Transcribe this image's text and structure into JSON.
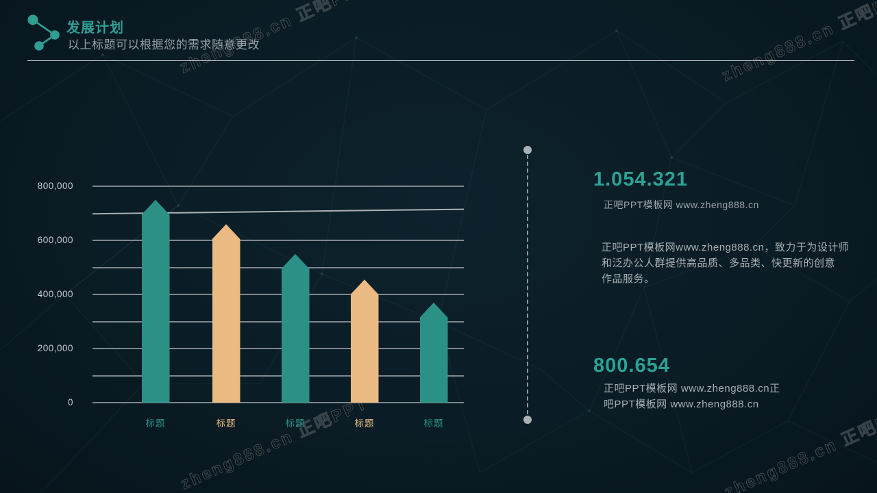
{
  "header": {
    "title": "发展计划",
    "subtitle": "以上标题可以根据您的需求随意更改",
    "icon": "molecule-nodes-icon"
  },
  "watermark": {
    "text": "zheng888.cn 正吧PPT"
  },
  "chart_data": {
    "type": "bar",
    "title": "",
    "xlabel": "",
    "ylabel": "",
    "categories": [
      "标题",
      "标题",
      "标题",
      "标题",
      "标题"
    ],
    "values": [
      750000,
      660000,
      550000,
      455000,
      370000
    ],
    "bar_colors": [
      "#2b9186",
      "#eaba82",
      "#2b9186",
      "#eaba82",
      "#2b9186"
    ],
    "ylim": [
      0,
      800000
    ],
    "yticks": [
      {
        "label": "800,000",
        "value": 800000
      },
      {
        "label": "600,000",
        "value": 600000
      },
      {
        "label": "400,000",
        "value": 400000
      },
      {
        "label": "200,000",
        "value": 200000
      },
      {
        "label": "0",
        "value": 0
      }
    ],
    "gridline_values": [
      0,
      100000,
      200000,
      300000,
      400000,
      500000,
      600000,
      800000
    ],
    "trend_line": {
      "start_value": 698000,
      "end_value": 715000,
      "color": "#a9b1b5"
    },
    "grid": true,
    "legend_position": "none",
    "bar_shape": "pentagon-pointed-top"
  },
  "right_panel": {
    "stat1": {
      "number": "1.054.321",
      "label": "正吧PPT模板网  www.zheng888.cn",
      "desc_lines": [
        "正吧PPT模板网www.zheng888.cn，致力于为设计师",
        "和泛办公人群提供高品质、多品类、快更新的创意",
        "作品服务。"
      ]
    },
    "stat2": {
      "number": "800.654",
      "lines": [
        "正吧PPT模板网 www.zheng888.cn正",
        "吧PPT模板网 www.zheng888.cn"
      ]
    }
  },
  "colors": {
    "background": "#0a1c25",
    "teal": "#2b9186",
    "tan": "#eaba82",
    "accent_text": "#2ba294",
    "grid": "#9ea7ac",
    "text_gray": "#a7afb3"
  }
}
